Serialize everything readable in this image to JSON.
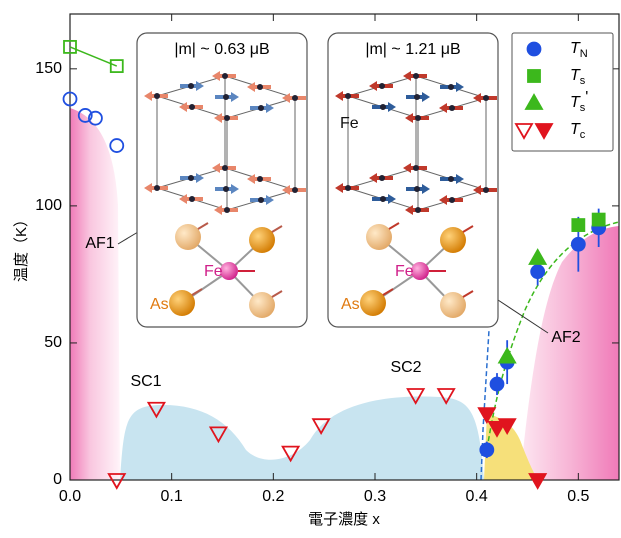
{
  "chart_data": {
    "type": "scatter",
    "xlabel": "電子濃度 x",
    "ylabel": "温度（K）",
    "xlim": [
      0,
      0.54
    ],
    "ylim": [
      0,
      170
    ],
    "xticks": [
      {
        "value": 0,
        "label": "0.0"
      },
      0.1,
      0.2,
      0.3,
      0.4,
      0.5
    ],
    "yticks": [
      0,
      50,
      100,
      150
    ],
    "legend": "upper right",
    "series": [
      {
        "name": "TN",
        "color": "#1f4fe0",
        "marker": "circle",
        "legend_markers": [
          "filled"
        ],
        "x": [
          0.0,
          0.015,
          0.025,
          0.046,
          0.41,
          0.42,
          0.43,
          0.46,
          0.5,
          0.52
        ],
        "values": [
          139,
          133,
          132,
          122,
          11,
          35,
          43,
          76,
          86,
          92
        ],
        "filled": [
          false,
          false,
          false,
          false,
          true,
          true,
          true,
          true,
          true,
          true
        ],
        "errors": [
          null,
          null,
          null,
          null,
          3,
          4,
          8,
          5,
          10,
          7
        ]
      },
      {
        "name": "Ts",
        "color": "#3cb81c",
        "marker": "square",
        "legend_markers": [
          "filled"
        ],
        "x": [
          0.0,
          0.046,
          0.5,
          0.52
        ],
        "values": [
          158,
          151,
          93,
          95
        ],
        "filled": [
          false,
          false,
          true,
          true
        ],
        "connect_open": true
      },
      {
        "name": "Ts'",
        "color": "#3cb81c",
        "marker": "triangle",
        "legend_markers": [
          "filled"
        ],
        "x": [
          0.43,
          0.46
        ],
        "values": [
          45,
          81
        ],
        "filled": [
          true,
          true
        ]
      },
      {
        "name": "Tc",
        "color": "#e0141e",
        "marker": "triangle-down",
        "legend_markers": [
          "open",
          "filled"
        ],
        "x": [
          0.046,
          0.085,
          0.146,
          0.217,
          0.247,
          0.34,
          0.37,
          0.41,
          0.42,
          0.43,
          0.46
        ],
        "values": [
          0,
          26,
          17,
          10,
          20,
          31,
          31,
          24,
          19,
          20,
          0
        ],
        "filled": [
          false,
          false,
          false,
          false,
          false,
          false,
          false,
          true,
          true,
          true,
          true
        ]
      }
    ],
    "annotations": [
      "AF1",
      "AF2",
      "SC1",
      "SC2"
    ],
    "insets": [
      {
        "label": "|m| ~ 0.63 μB",
        "atom_labels": [
          "Fe",
          "As"
        ]
      },
      {
        "label": "|m| ~ 1.21 μB",
        "atom_labels": [
          "Fe",
          "Fe",
          "As"
        ]
      }
    ]
  }
}
